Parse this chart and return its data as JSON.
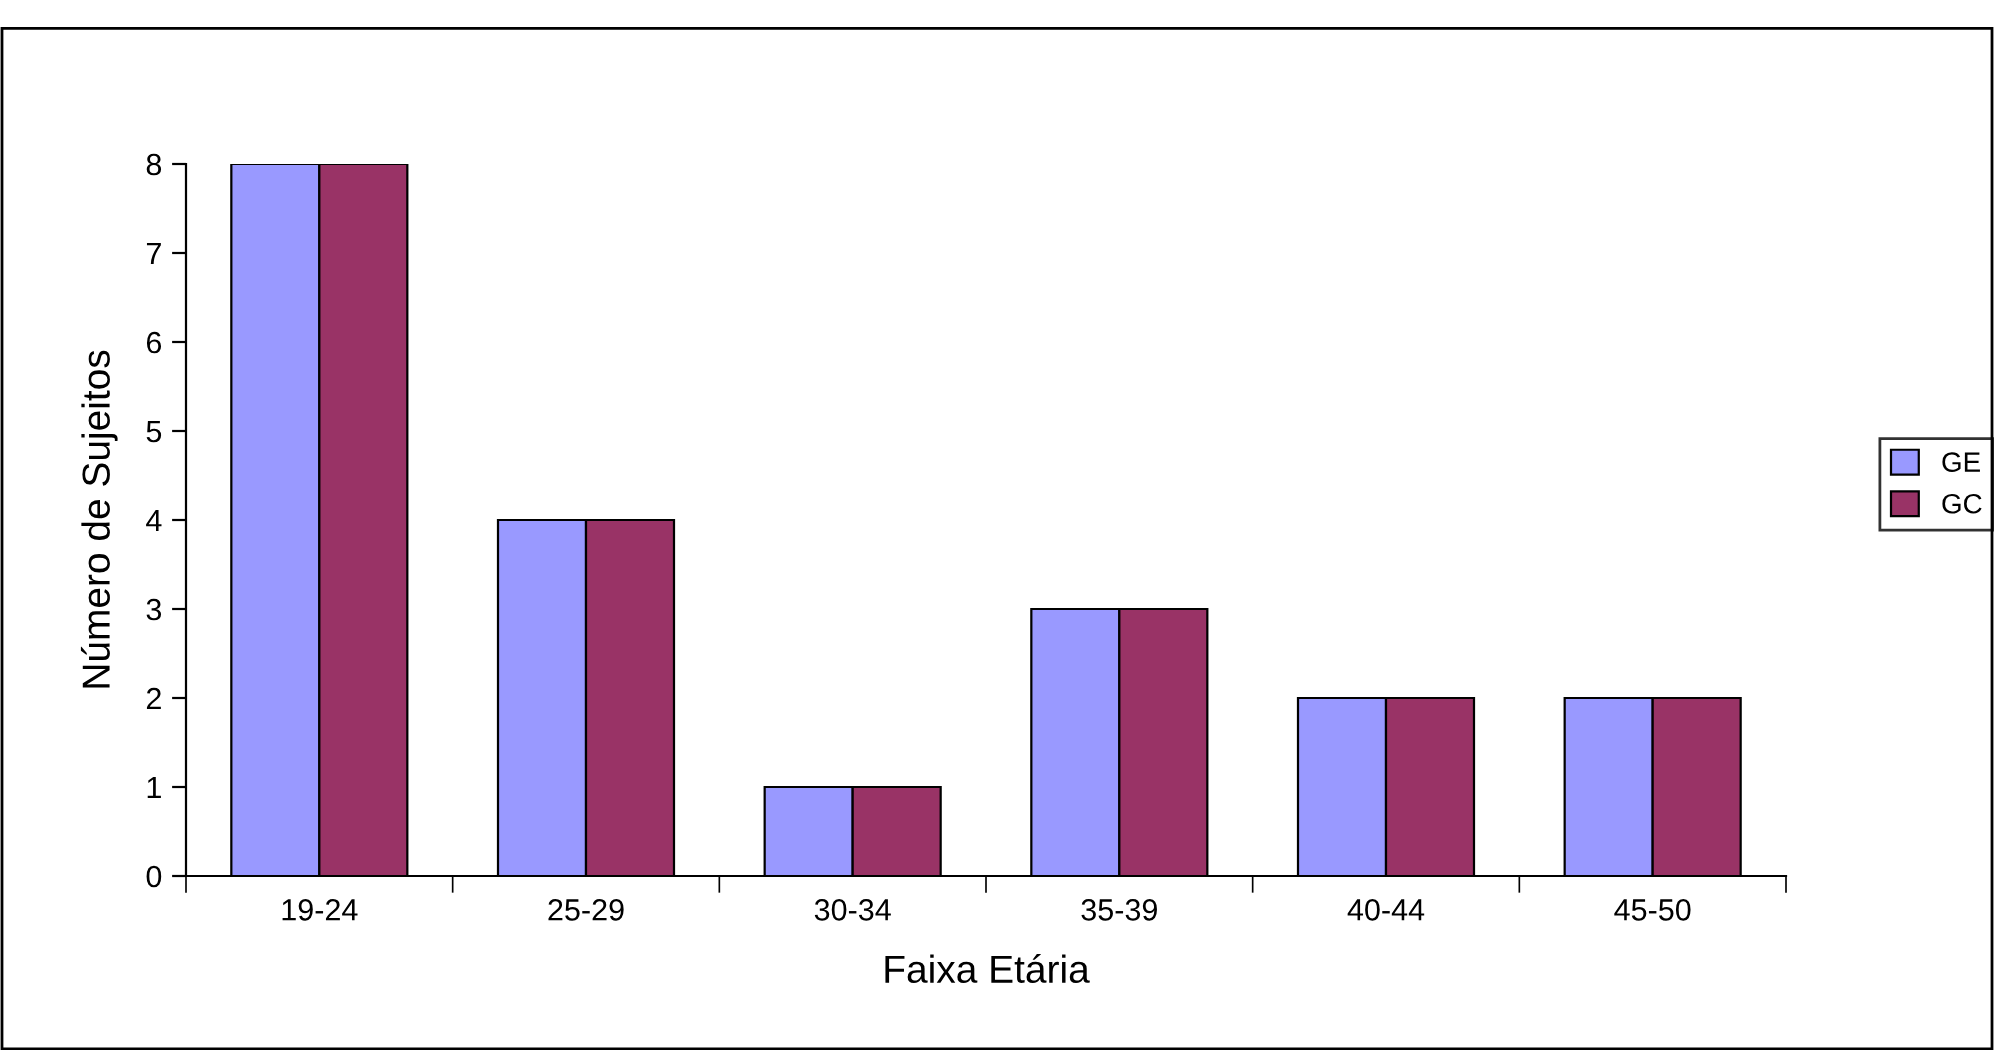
{
  "chart_data": {
    "type": "bar",
    "xlabel": "Faixa Etária",
    "ylabel": "Número de Sujeitos",
    "categories": [
      "19-24",
      "25-29",
      "30-34",
      "35-39",
      "40-44",
      "45-50"
    ],
    "series": [
      {
        "name": "GE",
        "color": "#9999ff",
        "values": [
          8,
          4,
          1,
          3,
          2,
          2
        ]
      },
      {
        "name": "GC",
        "color": "#993366",
        "values": [
          8,
          4,
          1,
          3,
          2,
          2
        ]
      }
    ],
    "ylim": [
      0,
      8
    ],
    "yticks": [
      0,
      1,
      2,
      3,
      4,
      5,
      6,
      7,
      8
    ],
    "grid": false,
    "legend": "right"
  }
}
